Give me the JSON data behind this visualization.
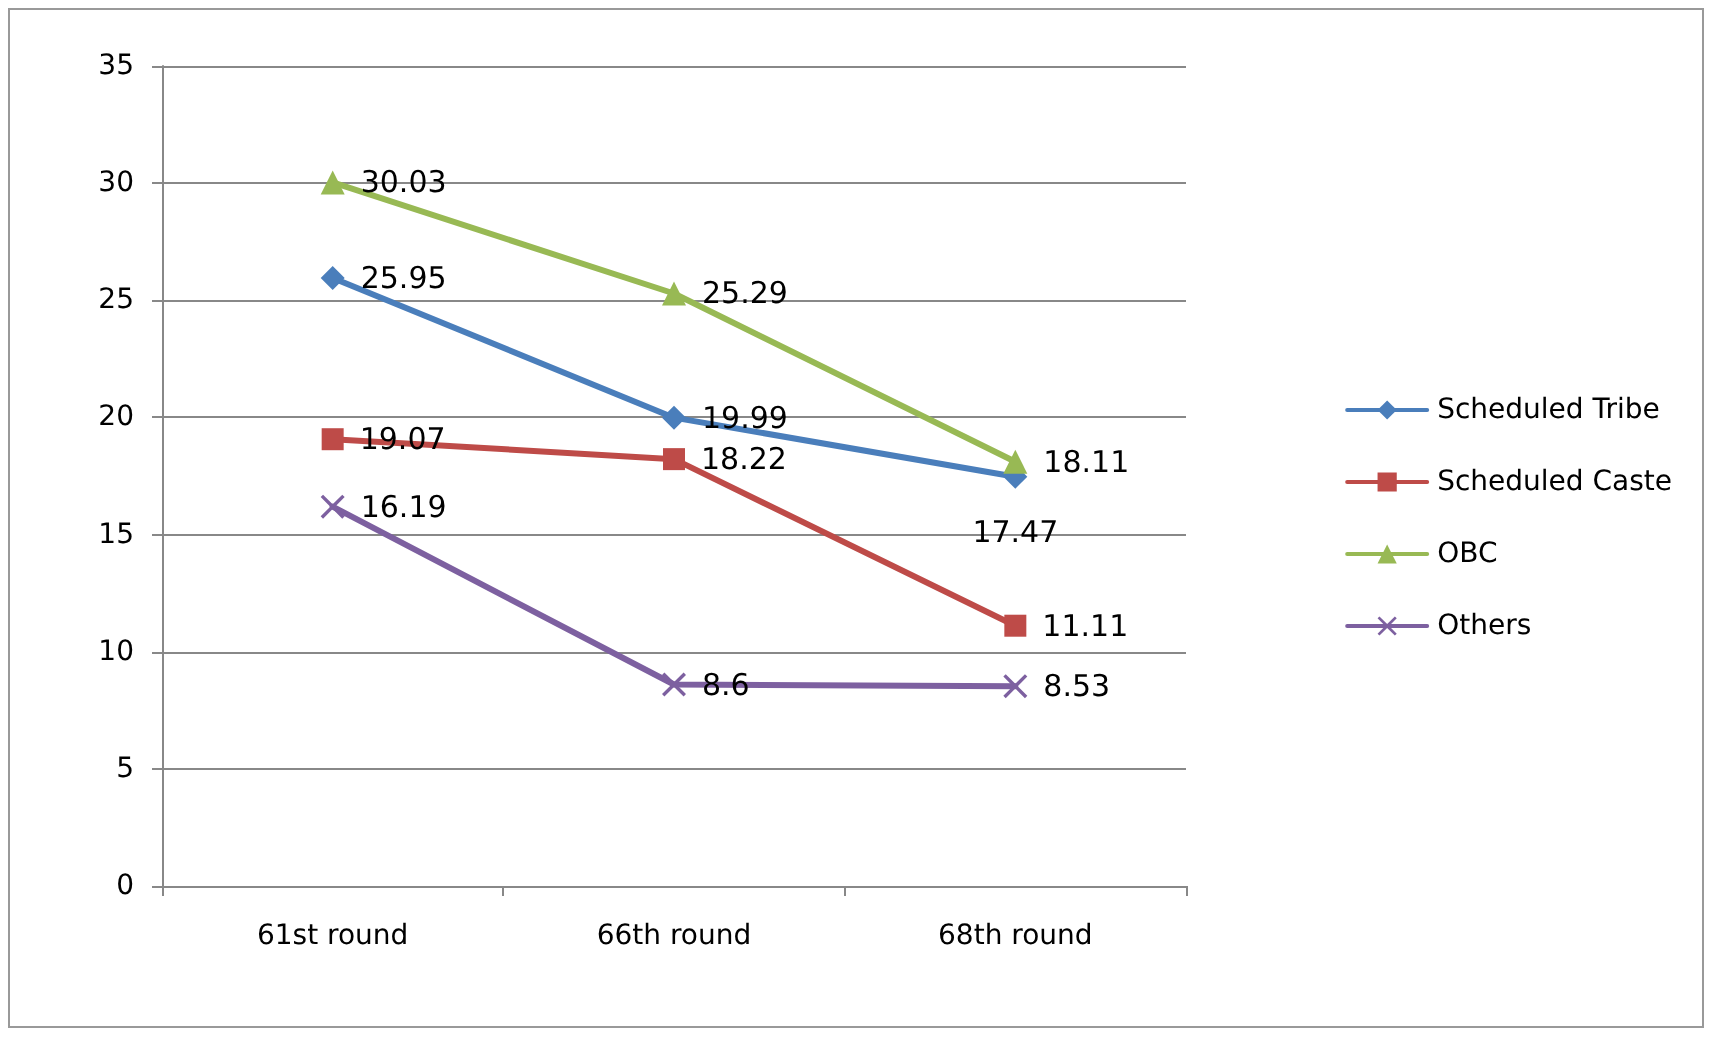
{
  "chart_data": {
    "type": "line",
    "categories": [
      "61st round",
      "66th round",
      "68th round"
    ],
    "series": [
      {
        "name": "Scheduled Tribe",
        "color": "#4a7ebb",
        "marker": "diamond",
        "values": [
          25.95,
          19.99,
          17.47
        ]
      },
      {
        "name": "Scheduled Caste",
        "color": "#be4b48",
        "marker": "square",
        "values": [
          19.07,
          18.22,
          11.11
        ]
      },
      {
        "name": "OBC",
        "color": "#98b954",
        "marker": "triangle",
        "values": [
          30.03,
          25.29,
          18.11
        ]
      },
      {
        "name": "Others",
        "color": "#7d60a0",
        "marker": "cross",
        "values": [
          16.19,
          8.6,
          8.53
        ]
      }
    ],
    "ylim": [
      0,
      35
    ],
    "yticks": [
      0,
      5,
      10,
      15,
      20,
      25,
      30,
      35
    ],
    "grid": "y",
    "legend": "right",
    "data_labels": true,
    "line_style": "solid"
  }
}
